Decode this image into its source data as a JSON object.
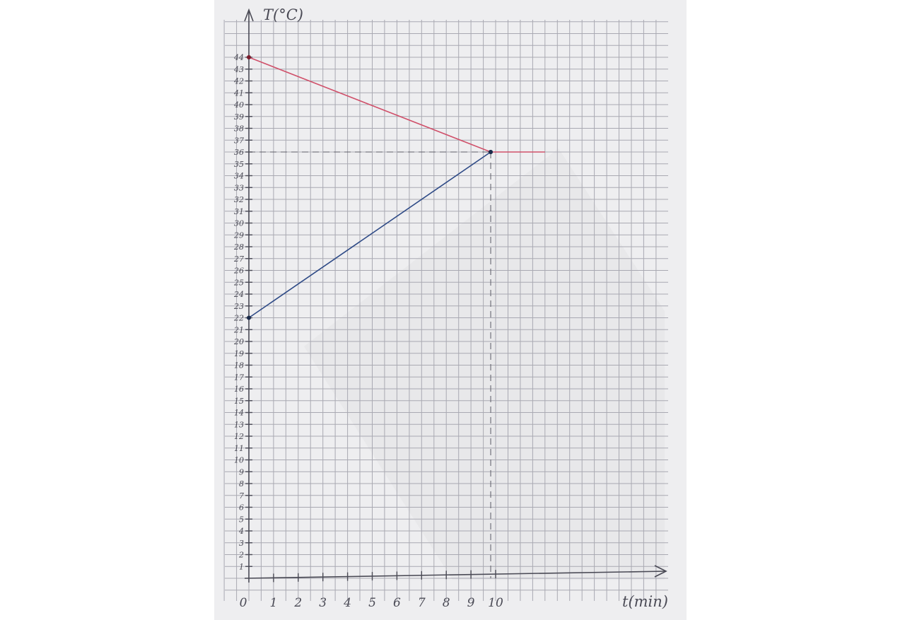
{
  "chart_data": {
    "type": "line",
    "xlabel": "t(min)",
    "ylabel": "T(°C)",
    "x_ticks": [
      "0",
      "1",
      "2",
      "3",
      "4",
      "5",
      "6",
      "7",
      "8",
      "9",
      "10"
    ],
    "y_ticks": [
      "1",
      "2",
      "3",
      "4",
      "5",
      "6",
      "7",
      "8",
      "9",
      "10",
      "11",
      "12",
      "13",
      "14",
      "15",
      "16",
      "17",
      "18",
      "19",
      "20",
      "21",
      "22",
      "23",
      "24",
      "25",
      "26",
      "27",
      "28",
      "29",
      "30",
      "31",
      "32",
      "33",
      "34",
      "35",
      "36",
      "37",
      "38",
      "39",
      "40",
      "41",
      "42",
      "43",
      "44"
    ],
    "xlim": [
      0,
      17
    ],
    "ylim": [
      0,
      47
    ],
    "grid": true,
    "series": [
      {
        "color": "#d0506a",
        "points": [
          [
            0,
            44
          ],
          [
            9.8,
            36
          ],
          [
            12,
            36
          ]
        ]
      },
      {
        "color": "#2e4a86",
        "points": [
          [
            0,
            22
          ],
          [
            9.8,
            36
          ]
        ]
      }
    ],
    "reference_lines": {
      "x": 9.8,
      "y": 36
    }
  }
}
